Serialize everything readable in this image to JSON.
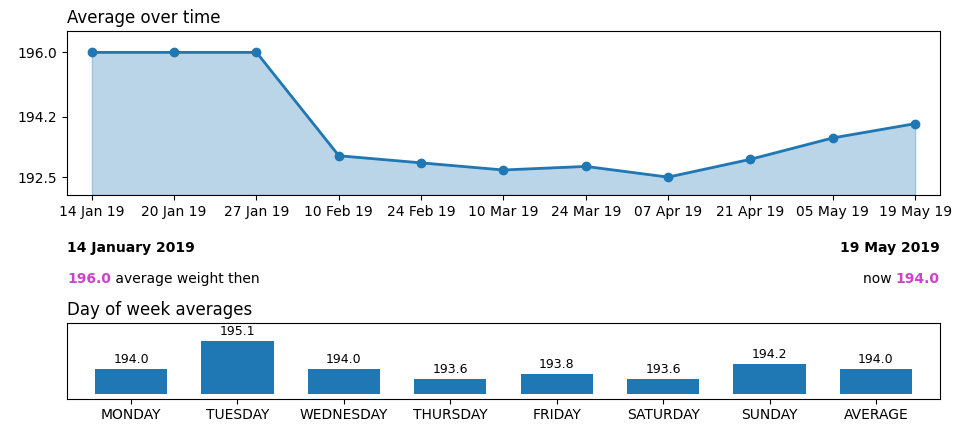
{
  "chart_data": [
    {
      "type": "area",
      "title": "Average over time",
      "categories": [
        "14 Jan 19",
        "20 Jan 19",
        "27 Jan 19",
        "10 Feb 19",
        "24 Feb 19",
        "10 Mar 19",
        "24 Mar 19",
        "07 Apr 19",
        "21 Apr 19",
        "05 May 19",
        "19 May 19"
      ],
      "values": [
        196.0,
        196.0,
        196.0,
        193.1,
        192.9,
        192.7,
        192.8,
        192.5,
        193.0,
        193.6,
        194.0
      ],
      "marker": "o",
      "ylim": [
        192.0,
        196.6
      ],
      "yticks": [
        192.5,
        194.2,
        196.0
      ],
      "grid": false,
      "annotations": [
        "14 January 2019",
        "19 May 2019",
        "196.0",
        " average weight then",
        "now ",
        "194.0"
      ]
    },
    {
      "type": "bar",
      "title": "Day of week averages",
      "categories": [
        "MONDAY",
        "TUESDAY",
        "WEDNESDAY",
        "THURSDAY",
        "FRIDAY",
        "SATURDAY",
        "SUNDAY",
        "AVERAGE"
      ],
      "values": [
        194.0,
        195.1,
        194.0,
        193.6,
        193.8,
        193.6,
        194.2,
        194.0
      ],
      "base": 193.0,
      "ylim": [
        192.8,
        195.8
      ],
      "data_labels": true,
      "tick_labels": "x",
      "grid": false
    }
  ]
}
